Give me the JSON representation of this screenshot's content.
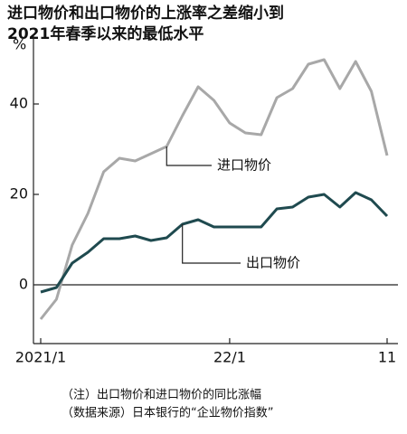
{
  "chart_data": {
    "type": "line",
    "title": [
      "进口物价和出口物价的上涨率之差缩小到",
      "2021年春季以来的最低水平"
    ],
    "y_unit": "%",
    "categories": [
      "2021/1",
      null,
      null,
      null,
      null,
      null,
      null,
      null,
      null,
      null,
      null,
      null,
      "22/1",
      null,
      null,
      null,
      null,
      null,
      null,
      null,
      null,
      null,
      "11"
    ],
    "series": [
      {
        "name": "进口物价",
        "color": "#a8a8a8",
        "values": [
          -7.6,
          -3.2,
          8.8,
          15.8,
          25,
          28,
          27.4,
          29,
          30.6,
          37.4,
          43.8,
          40.8,
          35.8,
          33.6,
          33.2,
          41.4,
          43.4,
          48.8,
          49.8,
          43.4,
          49.4,
          42.8,
          28.6
        ]
      },
      {
        "name": "出口物价",
        "color": "#1f4a4f",
        "values": [
          -1.6,
          -0.6,
          4.8,
          7.2,
          10.2,
          10.2,
          10.8,
          9.8,
          10.4,
          13.4,
          14.4,
          12.8,
          12.8,
          12.8,
          12.8,
          16.8,
          17.2,
          19.4,
          20,
          17.2,
          20.4,
          18.8,
          15.2
        ]
      }
    ],
    "ylim": [
      -13,
      55
    ],
    "yticks": [
      0,
      20,
      40
    ],
    "notes": [
      "（注）出口物价和进口物价的同比涨幅",
      "（数据来源）日本银行的“企业物价指数”"
    ]
  }
}
